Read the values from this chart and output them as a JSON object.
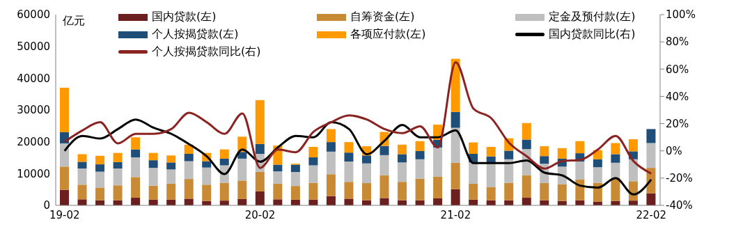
{
  "chart_data": {
    "type": "bar",
    "stacked": true,
    "ylabel": "亿元",
    "categories": [
      "19-02",
      null,
      null,
      null,
      null,
      null,
      null,
      null,
      null,
      null,
      null,
      "20-02",
      null,
      null,
      null,
      null,
      null,
      null,
      null,
      null,
      null,
      null,
      "21-02",
      null,
      null,
      null,
      null,
      null,
      null,
      null,
      null,
      null,
      null,
      "22-02"
    ],
    "series": [
      {
        "name": "国内贷款(左)",
        "color": "#6b1f1f",
        "values": [
          4900,
          1900,
          1600,
          1600,
          2400,
          1800,
          1800,
          2100,
          1400,
          1500,
          2000,
          4400,
          1900,
          1800,
          1800,
          2900,
          2100,
          1600,
          2300,
          1600,
          1600,
          2200,
          5100,
          1800,
          1600,
          1600,
          2400,
          1600,
          1400,
          1600,
          1200,
          1400,
          1500,
          3800
        ]
      },
      {
        "name": "自筹资金(左)",
        "color": "#c98a35",
        "values": [
          7300,
          4600,
          4000,
          4700,
          6500,
          4400,
          5000,
          6200,
          5100,
          5600,
          5800,
          6200,
          4900,
          4300,
          5300,
          6900,
          5300,
          5400,
          7200,
          5800,
          6800,
          6800,
          8300,
          5000,
          4200,
          5500,
          7100,
          5400,
          5200,
          6600,
          5900,
          7200,
          6100,
          8000
        ]
      },
      {
        "name": "定金及预付款(左)",
        "color": "#bfbfbf",
        "values": [
          7300,
          5100,
          5000,
          5300,
          6200,
          5600,
          4500,
          5600,
          5400,
          5500,
          6900,
          5600,
          3900,
          4400,
          5500,
          7100,
          6400,
          6200,
          6300,
          6100,
          6100,
          9200,
          11000,
          6700,
          7600,
          7400,
          8200,
          6100,
          5600,
          5600,
          4900,
          4800,
          6900,
          7800
        ]
      },
      {
        "name": "个人按揭贷款(左)",
        "color": "#1f4e79",
        "values": [
          3500,
          2100,
          2300,
          2000,
          2500,
          2400,
          2200,
          2300,
          2000,
          2100,
          2100,
          3100,
          2100,
          2300,
          2500,
          3000,
          2800,
          2500,
          2900,
          2600,
          2600,
          2400,
          5000,
          2700,
          2000,
          2700,
          3000,
          2400,
          2500,
          2600,
          2500,
          2700,
          2500,
          4400
        ]
      },
      {
        "name": "各项应付款(左)",
        "color": "#ff9900",
        "values": [
          14000,
          2400,
          2700,
          2900,
          3800,
          2300,
          2200,
          2900,
          2600,
          2900,
          4800,
          13800,
          6000,
          300,
          3300,
          4100,
          3300,
          2900,
          4400,
          3000,
          3100,
          4800,
          16700,
          3600,
          3000,
          3900,
          5200,
          3100,
          3300,
          3800,
          2900,
          3500,
          3800,
          null
        ]
      },
      {
        "name": "国内贷款同比(右)",
        "type": "line",
        "axis": "y2",
        "color": "#000000",
        "values": [
          0,
          11,
          9,
          16,
          23,
          17,
          12.5,
          5,
          -4,
          -17,
          1,
          -8,
          2.5,
          11,
          10,
          21,
          16,
          -2.5,
          7.5,
          19,
          10,
          10,
          15,
          -9,
          -9,
          -9,
          -7,
          -16,
          -18,
          -25.5,
          -27,
          -20,
          -32,
          -21
        ]
      },
      {
        "name": "个人按揭贷款同比(右)",
        "type": "line",
        "axis": "y2",
        "color": "#8b2323",
        "values": [
          6.7,
          15,
          21,
          5.5,
          12.5,
          12.5,
          16,
          28,
          21,
          12.5,
          27.5,
          -12.5,
          1,
          -1,
          14,
          21,
          26,
          23,
          16,
          13,
          18,
          2.5,
          65,
          31,
          24,
          6,
          -4,
          -13,
          -7.5,
          -6.7,
          1,
          11,
          -7.5,
          -16.7
        ]
      }
    ],
    "ylim": [
      0,
      60000
    ],
    "yticks": [
      0,
      10000,
      20000,
      30000,
      40000,
      50000,
      60000
    ],
    "y2lim": [
      -40,
      100
    ],
    "y2ticks": [
      {
        "value": -40,
        "label": "-40%"
      },
      {
        "value": -20,
        "label": "-20%"
      },
      {
        "value": 0,
        "label": "0%"
      },
      {
        "value": 20,
        "label": "20%"
      },
      {
        "value": 40,
        "label": "40%"
      },
      {
        "value": 60,
        "label": "60%"
      },
      {
        "value": 80,
        "label": "80%"
      },
      {
        "value": 100,
        "label": "100%"
      }
    ],
    "grid": false,
    "legend": "top"
  }
}
